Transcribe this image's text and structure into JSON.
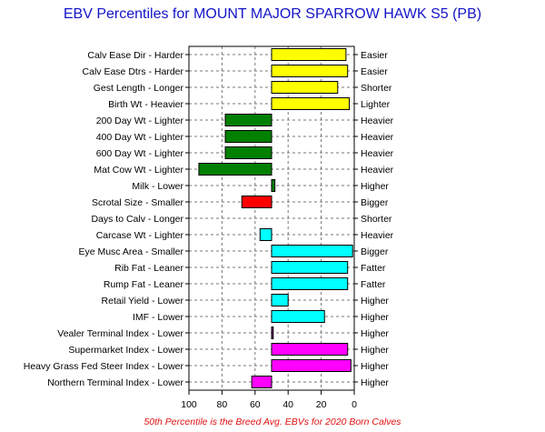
{
  "title": "EBV Percentiles for MOUNT MAJOR SPARROW HAWK S5 (PB)",
  "footnote": "50th Percentile is the Breed Avg. EBVs for 2020 Born Calves",
  "colors": {
    "yellow": "#ffff00",
    "green": "#008000",
    "red": "#ff0000",
    "cyan": "#00ffff",
    "purple": "#800080",
    "magenta": "#ff00ff"
  },
  "chart_data": {
    "type": "bar",
    "orientation": "horizontal",
    "baseline": 50,
    "xlim": [
      100,
      0
    ],
    "x_ticks": [
      100,
      80,
      60,
      40,
      20,
      0
    ],
    "grid": true,
    "categories": [
      "Calv Ease Dir - Harder",
      "Calv Ease Dtrs - Harder",
      "Gest Length - Longer",
      "Birth Wt - Heavier",
      "200 Day Wt - Lighter",
      "400 Day Wt - Lighter",
      "600 Day Wt - Lighter",
      "Mat Cow Wt - Lighter",
      "Milk - Lower",
      "Scrotal Size - Smaller",
      "Days to Calv - Longer",
      "Carcase Wt - Lighter",
      "Eye Musc Area - Smaller",
      "Rib Fat - Leaner",
      "Rump Fat - Leaner",
      "Retail Yield - Lower",
      "IMF - Lower",
      "Vealer Terminal Index - Lower",
      "Supermarket Index - Lower",
      "Heavy Grass Fed Steer Index - Lower",
      "Northern Terminal Index - Lower"
    ],
    "right_labels": [
      "Easier",
      "Easier",
      "Shorter",
      "Lighter",
      "Heavier",
      "Heavier",
      "Heavier",
      "Heavier",
      "Higher",
      "Bigger",
      "Shorter",
      "Heavier",
      "Bigger",
      "Fatter",
      "Fatter",
      "Higher",
      "Higher",
      "Higher",
      "Higher",
      "Higher",
      "Higher"
    ],
    "values": [
      5,
      4,
      10,
      3,
      78,
      78,
      78,
      94,
      48,
      68,
      null,
      57,
      1,
      4,
      4,
      40,
      18,
      49,
      4,
      2,
      62
    ],
    "bar_colors": [
      "yellow",
      "yellow",
      "yellow",
      "yellow",
      "green",
      "green",
      "green",
      "green",
      "green",
      "red",
      null,
      "cyan",
      "cyan",
      "cyan",
      "cyan",
      "cyan",
      "cyan",
      "purple",
      "magenta",
      "magenta",
      "magenta"
    ]
  }
}
